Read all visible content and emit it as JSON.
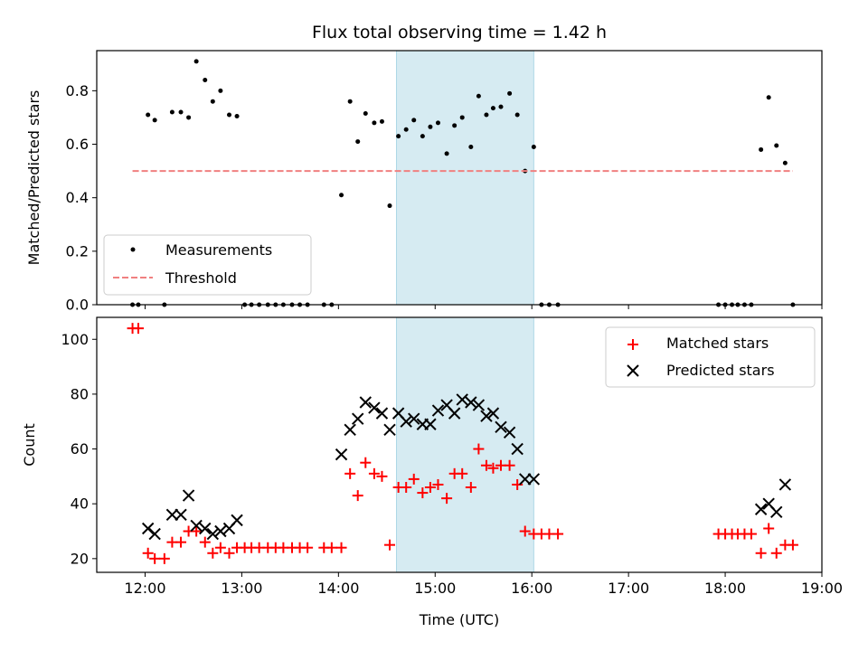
{
  "chart_data": [
    {
      "type": "scatter",
      "title": "Flux total observing time = 1.42 h",
      "ylabel": "Matched/Predicted stars",
      "xlabel": "",
      "x_unit": "hours UTC",
      "xlim": [
        11.5,
        19.0
      ],
      "ylim": [
        0.0,
        0.95
      ],
      "yticks": [
        0.0,
        0.2,
        0.4,
        0.6,
        0.8
      ],
      "ytick_labels": [
        "0.0",
        "0.2",
        "0.4",
        "0.6",
        "0.8"
      ],
      "xticks": [
        12,
        13,
        14,
        15,
        16,
        17,
        18,
        19
      ],
      "shaded_interval": [
        14.6,
        16.02
      ],
      "shade_color": "#add8e6",
      "legend": {
        "position": "lower-left"
      },
      "series": [
        {
          "name": "Measurements",
          "marker": "dot",
          "color": "#000000",
          "x": [
            11.87,
            11.93,
            12.03,
            12.1,
            12.2,
            12.28,
            12.37,
            12.45,
            12.53,
            12.62,
            12.7,
            12.78,
            12.87,
            12.95,
            13.03,
            13.1,
            13.18,
            13.27,
            13.35,
            13.43,
            13.52,
            13.6,
            13.68,
            13.85,
            13.93,
            14.03,
            14.12,
            14.2,
            14.28,
            14.37,
            14.45,
            14.53,
            14.62,
            14.7,
            14.78,
            14.87,
            14.95,
            15.03,
            15.12,
            15.2,
            15.28,
            15.37,
            15.45,
            15.53,
            15.6,
            15.68,
            15.77,
            15.85,
            15.93,
            16.02,
            16.1,
            16.18,
            16.27,
            17.93,
            18.0,
            18.07,
            18.13,
            18.2,
            18.27,
            18.37,
            18.45,
            18.53,
            18.62,
            18.7
          ],
          "y": [
            0.0,
            0.0,
            0.71,
            0.69,
            0.0,
            0.72,
            0.72,
            0.7,
            0.91,
            0.84,
            0.76,
            0.8,
            0.71,
            0.705,
            0.0,
            0.0,
            0.0,
            0.0,
            0.0,
            0.0,
            0.0,
            0.0,
            0.0,
            0.0,
            0.0,
            0.41,
            0.76,
            0.61,
            0.715,
            0.68,
            0.685,
            0.37,
            0.63,
            0.655,
            0.69,
            0.63,
            0.665,
            0.68,
            0.565,
            0.67,
            0.7,
            0.59,
            0.78,
            0.71,
            0.735,
            0.74,
            0.79,
            0.71,
            0.5,
            0.59,
            0.0,
            0.0,
            0.0,
            0.0,
            0.0,
            0.0,
            0.0,
            0.0,
            0.0,
            0.58,
            0.775,
            0.595,
            0.53,
            0.0
          ]
        },
        {
          "name": "Threshold",
          "marker": "dashed-line",
          "color": "#f08080",
          "x": [
            11.87,
            18.7
          ],
          "y": [
            0.5,
            0.5
          ]
        }
      ]
    },
    {
      "type": "scatter",
      "title": "",
      "ylabel": "Count",
      "xlabel": "Time (UTC)",
      "x_unit": "hours UTC",
      "xlim": [
        11.5,
        19.0
      ],
      "ylim": [
        15,
        108
      ],
      "yticks": [
        20,
        40,
        60,
        80,
        100
      ],
      "ytick_labels": [
        "20",
        "40",
        "60",
        "80",
        "100"
      ],
      "xticks": [
        12,
        13,
        14,
        15,
        16,
        17,
        18,
        19
      ],
      "xtick_labels": [
        "12:00",
        "13:00",
        "14:00",
        "15:00",
        "16:00",
        "17:00",
        "18:00",
        "19:00"
      ],
      "shaded_interval": [
        14.6,
        16.02
      ],
      "shade_color": "#add8e6",
      "legend": {
        "position": "top-right"
      },
      "series": [
        {
          "name": "Matched stars",
          "marker": "plus",
          "color": "#ff0000",
          "x": [
            11.87,
            11.93,
            12.03,
            12.1,
            12.2,
            12.28,
            12.37,
            12.45,
            12.53,
            12.62,
            12.7,
            12.78,
            12.87,
            12.95,
            13.03,
            13.1,
            13.18,
            13.27,
            13.35,
            13.43,
            13.52,
            13.6,
            13.68,
            13.85,
            13.93,
            14.03,
            14.12,
            14.2,
            14.28,
            14.37,
            14.45,
            14.53,
            14.62,
            14.7,
            14.78,
            14.87,
            14.95,
            15.03,
            15.12,
            15.2,
            15.28,
            15.37,
            15.45,
            15.53,
            15.6,
            15.68,
            15.77,
            15.85,
            15.93,
            16.02,
            16.1,
            16.18,
            16.27,
            17.93,
            18.0,
            18.07,
            18.13,
            18.2,
            18.27,
            18.37,
            18.45,
            18.53,
            18.62,
            18.7
          ],
          "y": [
            104,
            104,
            22,
            20,
            20,
            26,
            26,
            30,
            30,
            26,
            22,
            24,
            22,
            24,
            24,
            24,
            24,
            24,
            24,
            24,
            24,
            24,
            24,
            24,
            24,
            24,
            51,
            43,
            55,
            51,
            50,
            25,
            46,
            46,
            49,
            44,
            46,
            47,
            42,
            51,
            51,
            46,
            60,
            54,
            53,
            54,
            54,
            47,
            30,
            29,
            29,
            29,
            29,
            29,
            29,
            29,
            29,
            29,
            29,
            22,
            31,
            22,
            25,
            25
          ]
        },
        {
          "name": "Predicted stars",
          "marker": "x",
          "color": "#000000",
          "x": [
            12.03,
            12.1,
            12.28,
            12.37,
            12.45,
            12.53,
            12.62,
            12.7,
            12.78,
            12.87,
            12.95,
            14.03,
            14.12,
            14.2,
            14.28,
            14.37,
            14.45,
            14.53,
            14.62,
            14.7,
            14.78,
            14.87,
            14.95,
            15.03,
            15.12,
            15.2,
            15.28,
            15.37,
            15.45,
            15.53,
            15.6,
            15.68,
            15.77,
            15.85,
            15.93,
            16.02,
            18.37,
            18.45,
            18.53,
            18.62
          ],
          "y": [
            31,
            29,
            36,
            36,
            43,
            32,
            31,
            29,
            30,
            31,
            34,
            58,
            67,
            71,
            77,
            75,
            73,
            67,
            73,
            70,
            71,
            69,
            69,
            74,
            76,
            73,
            78,
            77,
            76,
            72,
            73,
            68,
            66,
            60,
            49,
            49,
            38,
            40,
            37,
            47
          ]
        }
      ]
    }
  ]
}
